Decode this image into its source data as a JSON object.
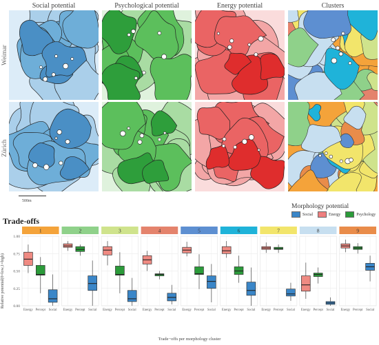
{
  "maps": {
    "columns": [
      "Social potential",
      "Psychological potential",
      "Energy potential",
      "Clusters"
    ],
    "rows": [
      "Weimar",
      "Zürich"
    ],
    "palettes": {
      "social": [
        "#dcecf8",
        "#aacfea",
        "#6eaed8",
        "#4a8fc5"
      ],
      "psych": [
        "#dff2dd",
        "#a9dca3",
        "#5cbf5c",
        "#2e9e3b"
      ],
      "energy": [
        "#fadcdc",
        "#f3a6a6",
        "#ea6464",
        "#df2d2d"
      ],
      "clusters": [
        "#f4a33a",
        "#8fd18a",
        "#cfe38c",
        "#e4836c",
        "#5d8fd1",
        "#1fb3d9",
        "#f2e56b",
        "#c7dff0",
        "#e98c4a"
      ]
    },
    "scale_label": "500m"
  },
  "legend": {
    "title": "Morphology potential",
    "items": [
      {
        "label": "Social",
        "color": "#3a86c8"
      },
      {
        "label": "Energy",
        "color": "#ef7f7f"
      },
      {
        "label": "Psychology",
        "color": "#2b9b3a"
      }
    ]
  },
  "tradeoffs_title": "Trade-offs",
  "chart_data": {
    "type": "boxplot",
    "facets": [
      "1",
      "2",
      "3",
      "4",
      "5",
      "6",
      "7",
      "8",
      "9"
    ],
    "facet_colors": [
      "#f4a33a",
      "#8fd18a",
      "#cfe38c",
      "#e4836c",
      "#5d8fd1",
      "#1fb3d9",
      "#f2e56b",
      "#c7dff0",
      "#e98c4a"
    ],
    "categories": [
      "Energy",
      "Percept",
      "Social"
    ],
    "series_colors": [
      "#ef8a82",
      "#2b9b3a",
      "#3a86c8"
    ],
    "ylim": [
      0,
      1
    ],
    "yticks": [
      "0.00",
      "0.25",
      "0.50",
      "0.75",
      "1.00"
    ],
    "ytick_values": [
      0,
      0.25,
      0.5,
      0.75,
      1.0
    ],
    "ylabel": "Relative potential(0=low,1=high)",
    "xlabel": "Trade−offs per morphology cluster",
    "boxes": [
      [
        [
          0.47,
          0.58,
          0.67,
          0.77,
          0.88
        ],
        [
          0.18,
          0.44,
          0.45,
          0.58,
          0.7
        ],
        [
          0.0,
          0.05,
          0.1,
          0.23,
          0.45
        ]
      ],
      [
        [
          0.79,
          0.84,
          0.86,
          0.89,
          0.93
        ],
        [
          0.72,
          0.78,
          0.81,
          0.85,
          0.88
        ],
        [
          0.0,
          0.22,
          0.32,
          0.43,
          0.65
        ]
      ],
      [
        [
          0.58,
          0.73,
          0.8,
          0.85,
          0.93
        ],
        [
          0.18,
          0.44,
          0.45,
          0.57,
          0.77
        ],
        [
          0.0,
          0.06,
          0.1,
          0.22,
          0.4
        ]
      ],
      [
        [
          0.5,
          0.6,
          0.66,
          0.72,
          0.79
        ],
        [
          0.38,
          0.43,
          0.45,
          0.46,
          0.5
        ],
        [
          0.02,
          0.07,
          0.12,
          0.18,
          0.3
        ]
      ],
      [
        [
          0.71,
          0.76,
          0.8,
          0.84,
          0.92
        ],
        [
          0.24,
          0.45,
          0.46,
          0.56,
          0.74
        ],
        [
          0.05,
          0.25,
          0.35,
          0.43,
          0.6
        ]
      ],
      [
        [
          0.69,
          0.75,
          0.79,
          0.85,
          0.93
        ],
        [
          0.33,
          0.45,
          0.5,
          0.56,
          0.72
        ],
        [
          0.0,
          0.15,
          0.22,
          0.34,
          0.55
        ]
      ],
      [
        [
          0.76,
          0.81,
          0.83,
          0.85,
          0.91
        ],
        [
          0.76,
          0.81,
          0.82,
          0.84,
          0.88
        ],
        [
          0.07,
          0.14,
          0.17,
          0.24,
          0.33
        ]
      ],
      [
        [
          0.1,
          0.21,
          0.3,
          0.43,
          0.62
        ],
        [
          0.32,
          0.42,
          0.45,
          0.47,
          0.55
        ],
        [
          0.0,
          0.02,
          0.04,
          0.06,
          0.12
        ]
      ],
      [
        [
          0.77,
          0.83,
          0.86,
          0.89,
          0.95
        ],
        [
          0.75,
          0.81,
          0.83,
          0.85,
          0.9
        ],
        [
          0.35,
          0.51,
          0.56,
          0.61,
          0.72
        ]
      ]
    ],
    "grid": true
  },
  "labels": {
    "ylabel": "Relative potential(0=low,1=high)",
    "xlabel": "Trade−offs per morphology cluster"
  }
}
